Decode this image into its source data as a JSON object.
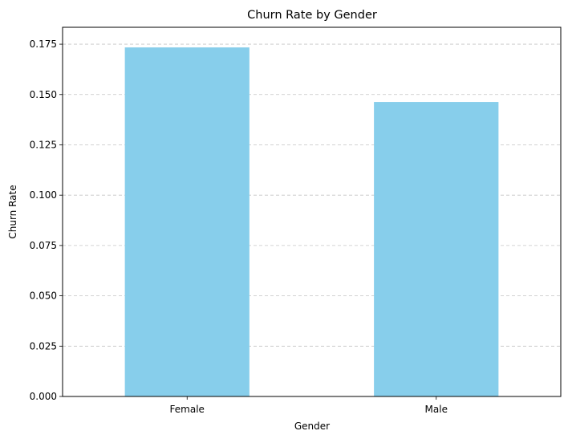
{
  "chart_data": {
    "type": "bar",
    "title": "Churn Rate by Gender",
    "xlabel": "Gender",
    "ylabel": "Churn Rate",
    "categories": [
      "Female",
      "Male"
    ],
    "values": [
      0.1734,
      0.1463
    ],
    "ylim": [
      0,
      0.1834
    ],
    "yticks": [
      0,
      0.025,
      0.05,
      0.075,
      0.1,
      0.125,
      0.15,
      0.175
    ],
    "ytick_labels": [
      "0.000",
      "0.025",
      "0.050",
      "0.075",
      "0.100",
      "0.125",
      "0.150",
      "0.175"
    ],
    "grid": {
      "y": true,
      "x": false,
      "style": "dashed"
    },
    "bar_color": "#87ceeb"
  }
}
